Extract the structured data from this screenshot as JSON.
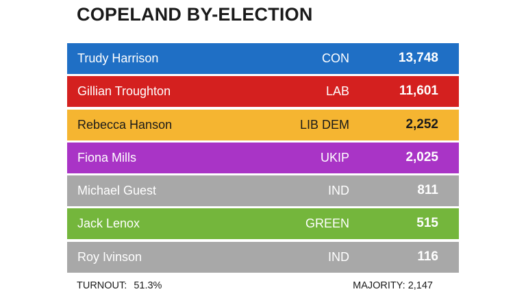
{
  "title": "COPELAND BY-ELECTION",
  "candidates": [
    {
      "name": "Trudy Harrison",
      "party": "CON",
      "votes": "13,748",
      "color": "#1f6fc5",
      "shade": "#185aa3"
    },
    {
      "name": "Gillian Troughton",
      "party": "LAB",
      "votes": "11,601",
      "color": "#d4201f",
      "shade": "#b01a19"
    },
    {
      "name": "Rebecca Hanson",
      "party": "LIB DEM",
      "votes": "2,252",
      "color": "#f5b531",
      "shade": "#e39a18"
    },
    {
      "name": "Fiona Mills",
      "party": "UKIP",
      "votes": "2,025",
      "color": "#a934c6",
      "shade": "#8e27a8"
    },
    {
      "name": "Michael Guest",
      "party": "IND",
      "votes": "811",
      "color": "#a8a8a8",
      "shade": "#8f8f8f"
    },
    {
      "name": "Jack Lenox",
      "party": "GREEN",
      "votes": "515",
      "color": "#74b63c",
      "shade": "#5f9a2f"
    },
    {
      "name": "Roy Ivinson",
      "party": "IND",
      "votes": "116",
      "color": "#a8a8a8",
      "shade": "#8f8f8f"
    }
  ],
  "footer": {
    "turnout_label": "TURNOUT:",
    "turnout_value": "51.3%",
    "majority_label": "MAJORITY:",
    "majority_value": "2,147"
  }
}
